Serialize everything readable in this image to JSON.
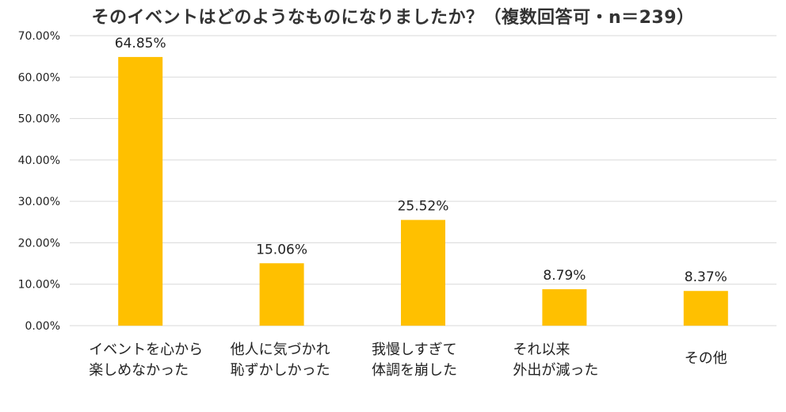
{
  "title": "そのイベントはどのようなものになりましたか？（複数回答可・n＝239）",
  "chart_data": {
    "type": "bar",
    "title": "そのイベントはどのようなものになりましたか？（複数回答可・n＝239）",
    "xlabel": "",
    "ylabel": "",
    "categories": [
      [
        "イベントを心から",
        "楽しめなかった"
      ],
      [
        "他人に気づかれ",
        "恥ずかしかった"
      ],
      [
        "我慢しすぎて",
        "体調を崩した"
      ],
      [
        "それ以来",
        "外出が減った"
      ],
      [
        "その他"
      ]
    ],
    "values": [
      64.85,
      15.06,
      25.52,
      8.79,
      8.37
    ],
    "value_labels": [
      "64.85%",
      "15.06%",
      "25.52%",
      "8.79%",
      "8.37%"
    ],
    "ylim": [
      0,
      70
    ],
    "yticks": [
      0,
      10,
      20,
      30,
      40,
      50,
      60,
      70
    ],
    "ytick_labels": [
      "0.00%",
      "10.00%",
      "20.00%",
      "30.00%",
      "40.00%",
      "50.00%",
      "60.00%",
      "70.00%"
    ],
    "grid": true,
    "legend": "none",
    "colors": {
      "bar": "#FFC000",
      "grid": "#D9D9D9",
      "text": "#222222"
    }
  }
}
